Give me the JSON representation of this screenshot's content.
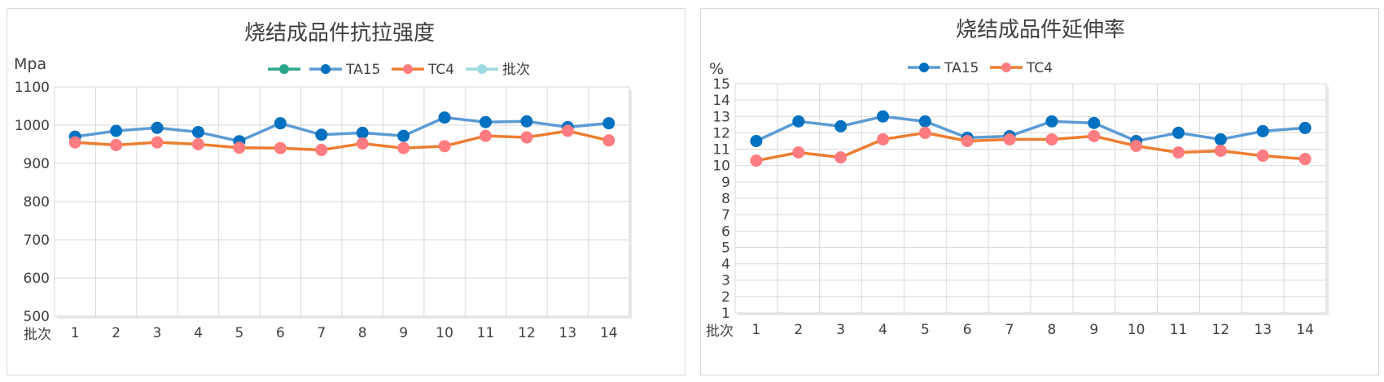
{
  "charts": [
    {
      "type": "line",
      "title": "烧结成品件抗拉强度",
      "ylabel": "Mpa",
      "xlabel": "批次",
      "categories": [
        "1",
        "2",
        "3",
        "4",
        "5",
        "6",
        "7",
        "8",
        "9",
        "10",
        "11",
        "12",
        "13",
        "14"
      ],
      "ylim": [
        500,
        1100
      ],
      "ytick_step": 100,
      "grid": true,
      "legend_position": "top",
      "legend": [
        {
          "name": "",
          "color": "#2ca58d"
        },
        {
          "name": "TA15",
          "color": "#5b9bd5",
          "marker": "#0070c0"
        },
        {
          "name": "TC4",
          "color": "#ed7d31",
          "marker": "#ff7c80"
        },
        {
          "name": "批次",
          "color": "#9fd9e0"
        }
      ],
      "series": [
        {
          "name": "TA15",
          "line_color": "#5b9bd5",
          "marker_color": "#0070c0",
          "values": [
            970,
            985,
            993,
            982,
            958,
            1005,
            975,
            980,
            972,
            1020,
            1008,
            1010,
            995,
            1005
          ]
        },
        {
          "name": "TC4",
          "line_color": "#ed7d31",
          "marker_color": "#ff7c80",
          "values": [
            955,
            948,
            955,
            950,
            941,
            940,
            935,
            952,
            940,
            945,
            972,
            968,
            985,
            960
          ]
        }
      ]
    },
    {
      "type": "line",
      "title": "烧结成品件延伸率",
      "ylabel": "%",
      "xlabel": "批次",
      "categories": [
        "1",
        "2",
        "3",
        "4",
        "5",
        "6",
        "7",
        "8",
        "9",
        "10",
        "11",
        "12",
        "13",
        "14"
      ],
      "ylim": [
        1,
        15
      ],
      "ytick_step": 1,
      "grid": true,
      "legend_position": "top",
      "legend": [
        {
          "name": "TA15",
          "color": "#5b9bd5",
          "marker": "#0070c0"
        },
        {
          "name": "TC4",
          "color": "#ed7d31",
          "marker": "#ff7c80"
        }
      ],
      "series": [
        {
          "name": "TA15",
          "line_color": "#5b9bd5",
          "marker_color": "#0070c0",
          "values": [
            11.5,
            12.7,
            12.4,
            13.0,
            12.7,
            11.7,
            11.8,
            12.7,
            12.6,
            11.5,
            12.0,
            11.6,
            12.1,
            12.3
          ]
        },
        {
          "name": "TC4",
          "line_color": "#ed7d31",
          "marker_color": "#ff7c80",
          "values": [
            10.3,
            10.8,
            10.5,
            11.6,
            12.0,
            11.5,
            11.6,
            11.6,
            11.8,
            11.2,
            10.8,
            10.9,
            10.6,
            10.4
          ]
        }
      ]
    }
  ]
}
